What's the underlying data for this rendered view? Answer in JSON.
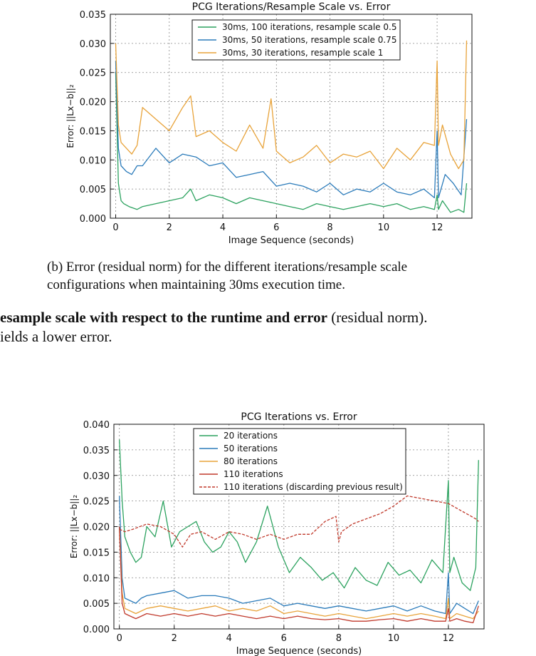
{
  "top_chart": {
    "title": "PCG Iterations/Resample Scale vs. Error",
    "ylabel": "Error: ||Lx−b||₂",
    "xlabel": "Image Sequence (seconds)",
    "yticks": [
      "0.000",
      "0.005",
      "0.010",
      "0.015",
      "0.020",
      "0.025",
      "0.030",
      "0.035"
    ],
    "xticks": [
      "0",
      "2",
      "4",
      "6",
      "8",
      "10",
      "12"
    ],
    "legend": [
      "30ms, 100 iterations, resample scale 0.5",
      "30ms, 50 iterations, resample scale 0.75",
      "30ms, 30 iterations, resample scale 1"
    ]
  },
  "caption": {
    "line1": "(b) Error (residual norm) for the different iterations/resample scale",
    "line2": "configurations when maintaining 30ms execution time."
  },
  "body_text": {
    "line1_bold": "esample scale with respect to the runtime and error",
    "line1_rest": " (residual norm).",
    "line2": "ields a lower error."
  },
  "bottom_chart": {
    "title": "PCG Iterations vs. Error",
    "ylabel": "Error: ||Lx−b||₂",
    "xlabel": "Image Sequence (seconds)",
    "yticks": [
      "0.000",
      "0.005",
      "0.010",
      "0.015",
      "0.020",
      "0.025",
      "0.030",
      "0.035",
      "0.040"
    ],
    "xticks": [
      "0",
      "2",
      "4",
      "6",
      "8",
      "10",
      "12"
    ],
    "legend": [
      "20 iterations",
      "50 iterations",
      "80 iterations",
      "110 iterations",
      "110 iterations (discarding previous result)"
    ]
  },
  "chart_data": [
    {
      "type": "line",
      "title": "PCG Iterations/Resample Scale vs. Error",
      "xlabel": "Image Sequence (seconds)",
      "ylabel": "Error: ||Lx−b||₂",
      "xlim": [
        -0.2,
        13.3
      ],
      "ylim": [
        0,
        0.035
      ],
      "grid": true,
      "legend_position": "top",
      "series": [
        {
          "name": "30ms, 100 iterations, resample scale 0.5",
          "color": "#2ca25f",
          "x": [
            0,
            0.1,
            0.2,
            0.3,
            0.5,
            0.8,
            1.0,
            1.5,
            2.0,
            2.5,
            2.8,
            3.0,
            3.5,
            4.0,
            4.5,
            5.0,
            5.5,
            6.0,
            6.5,
            7.0,
            7.5,
            8.0,
            8.5,
            9.0,
            9.5,
            10.0,
            10.5,
            11.0,
            11.5,
            11.9,
            12.0,
            12.05,
            12.2,
            12.5,
            12.8,
            13.0,
            13.1
          ],
          "values": [
            0.025,
            0.006,
            0.003,
            0.0025,
            0.002,
            0.0015,
            0.002,
            0.0025,
            0.003,
            0.0035,
            0.005,
            0.003,
            0.004,
            0.0035,
            0.0025,
            0.0035,
            0.003,
            0.0025,
            0.002,
            0.0015,
            0.0025,
            0.002,
            0.0015,
            0.002,
            0.0025,
            0.002,
            0.0025,
            0.0015,
            0.002,
            0.0015,
            0.004,
            0.0015,
            0.003,
            0.001,
            0.0015,
            0.001,
            0.006
          ]
        },
        {
          "name": "30ms, 50 iterations, resample scale 0.75",
          "color": "#2b7bba",
          "x": [
            0,
            0.1,
            0.2,
            0.4,
            0.6,
            0.8,
            1.0,
            1.5,
            2.0,
            2.5,
            3.0,
            3.5,
            4.0,
            4.5,
            5.0,
            5.5,
            6.0,
            6.5,
            7.0,
            7.5,
            8.0,
            8.5,
            9.0,
            9.5,
            10.0,
            10.5,
            11.0,
            11.5,
            11.9,
            12.0,
            12.05,
            12.3,
            12.6,
            12.9,
            13.1
          ],
          "values": [
            0.027,
            0.012,
            0.009,
            0.008,
            0.0075,
            0.009,
            0.009,
            0.012,
            0.0095,
            0.011,
            0.0105,
            0.009,
            0.0095,
            0.007,
            0.0075,
            0.008,
            0.0055,
            0.006,
            0.0055,
            0.0045,
            0.006,
            0.004,
            0.005,
            0.0045,
            0.006,
            0.0045,
            0.004,
            0.005,
            0.0035,
            0.015,
            0.0035,
            0.0075,
            0.006,
            0.004,
            0.017
          ]
        },
        {
          "name": "30ms, 30 iterations, resample scale 1",
          "color": "#e8a33a",
          "x": [
            0,
            0.1,
            0.2,
            0.4,
            0.6,
            0.8,
            1.0,
            1.5,
            2.0,
            2.5,
            2.8,
            3.0,
            3.5,
            4.0,
            4.5,
            5.0,
            5.5,
            5.8,
            6.0,
            6.5,
            7.0,
            7.5,
            8.0,
            8.5,
            9.0,
            9.5,
            10.0,
            10.5,
            11.0,
            11.5,
            11.9,
            12.0,
            12.05,
            12.2,
            12.5,
            12.8,
            13.0,
            13.1
          ],
          "values": [
            0.03,
            0.016,
            0.013,
            0.012,
            0.011,
            0.0125,
            0.019,
            0.017,
            0.015,
            0.019,
            0.021,
            0.014,
            0.015,
            0.013,
            0.0115,
            0.016,
            0.012,
            0.0205,
            0.0115,
            0.0095,
            0.0105,
            0.0125,
            0.0095,
            0.011,
            0.0105,
            0.0115,
            0.0085,
            0.012,
            0.01,
            0.013,
            0.0125,
            0.027,
            0.0125,
            0.016,
            0.011,
            0.0085,
            0.01,
            0.0305
          ]
        }
      ]
    },
    {
      "type": "line",
      "title": "PCG Iterations vs. Error",
      "xlabel": "Image Sequence (seconds)",
      "ylabel": "Error: ||Lx−b||₂",
      "xlim": [
        -0.2,
        13.3
      ],
      "ylim": [
        0,
        0.04
      ],
      "grid": true,
      "legend_position": "top",
      "series": [
        {
          "name": "20 iterations",
          "color": "#2ca25f",
          "x": [
            0,
            0.1,
            0.2,
            0.4,
            0.6,
            0.8,
            1.0,
            1.3,
            1.6,
            1.9,
            2.2,
            2.5,
            2.8,
            3.1,
            3.4,
            3.7,
            4.0,
            4.3,
            4.6,
            5.0,
            5.4,
            5.8,
            6.2,
            6.6,
            7.0,
            7.4,
            7.8,
            8.2,
            8.6,
            9.0,
            9.4,
            9.8,
            10.2,
            10.6,
            11.0,
            11.4,
            11.8,
            12.0,
            12.05,
            12.2,
            12.5,
            12.8,
            13.0,
            13.1
          ],
          "values": [
            0.037,
            0.025,
            0.018,
            0.015,
            0.013,
            0.014,
            0.02,
            0.018,
            0.025,
            0.016,
            0.019,
            0.02,
            0.021,
            0.017,
            0.015,
            0.016,
            0.019,
            0.017,
            0.013,
            0.017,
            0.024,
            0.016,
            0.011,
            0.014,
            0.012,
            0.0095,
            0.011,
            0.008,
            0.012,
            0.0095,
            0.0085,
            0.013,
            0.0105,
            0.0115,
            0.009,
            0.0135,
            0.011,
            0.029,
            0.011,
            0.014,
            0.009,
            0.0075,
            0.012,
            0.033
          ]
        },
        {
          "name": "50 iterations",
          "color": "#2b7bba",
          "x": [
            0,
            0.1,
            0.2,
            0.4,
            0.6,
            0.8,
            1.0,
            1.5,
            2.0,
            2.5,
            3.0,
            3.5,
            4.0,
            4.5,
            5.0,
            5.5,
            6.0,
            6.5,
            7.0,
            7.5,
            8.0,
            8.5,
            9.0,
            9.5,
            10.0,
            10.5,
            11.0,
            11.5,
            11.9,
            12.0,
            12.05,
            12.3,
            12.6,
            12.9,
            13.1
          ],
          "values": [
            0.026,
            0.01,
            0.006,
            0.0055,
            0.005,
            0.006,
            0.0065,
            0.007,
            0.0075,
            0.006,
            0.0065,
            0.0065,
            0.006,
            0.005,
            0.0055,
            0.006,
            0.0045,
            0.005,
            0.0045,
            0.004,
            0.0045,
            0.004,
            0.0035,
            0.004,
            0.0045,
            0.0035,
            0.0045,
            0.0035,
            0.003,
            0.011,
            0.003,
            0.005,
            0.004,
            0.003,
            0.0055
          ]
        },
        {
          "name": "80 iterations",
          "color": "#e8a33a",
          "x": [
            0,
            0.1,
            0.2,
            0.4,
            0.6,
            0.8,
            1.0,
            1.5,
            2.0,
            2.5,
            3.0,
            3.5,
            4.0,
            4.5,
            5.0,
            5.5,
            6.0,
            6.5,
            7.0,
            7.5,
            8.0,
            8.5,
            9.0,
            9.5,
            10.0,
            10.5,
            11.0,
            11.5,
            11.9,
            12.0,
            12.05,
            12.3,
            12.6,
            12.9,
            13.1
          ],
          "values": [
            0.02,
            0.007,
            0.004,
            0.0035,
            0.003,
            0.0035,
            0.004,
            0.0045,
            0.004,
            0.0035,
            0.004,
            0.0045,
            0.0035,
            0.004,
            0.0035,
            0.0045,
            0.003,
            0.0035,
            0.003,
            0.0025,
            0.003,
            0.0025,
            0.002,
            0.0025,
            0.003,
            0.0025,
            0.003,
            0.0025,
            0.002,
            0.006,
            0.002,
            0.003,
            0.0025,
            0.002,
            0.0035
          ]
        },
        {
          "name": "110 iterations",
          "color": "#c0392b",
          "x": [
            0,
            0.1,
            0.2,
            0.4,
            0.6,
            0.8,
            1.0,
            1.5,
            2.0,
            2.5,
            3.0,
            3.5,
            4.0,
            4.5,
            5.0,
            5.5,
            6.0,
            6.5,
            7.0,
            7.5,
            8.0,
            8.5,
            9.0,
            9.5,
            10.0,
            10.5,
            11.0,
            11.5,
            11.9,
            12.0,
            12.05,
            12.3,
            12.6,
            12.9,
            13.1
          ],
          "values": [
            0.02,
            0.005,
            0.003,
            0.0025,
            0.002,
            0.0025,
            0.003,
            0.0025,
            0.003,
            0.0025,
            0.003,
            0.0025,
            0.003,
            0.0025,
            0.002,
            0.0025,
            0.002,
            0.0025,
            0.002,
            0.0018,
            0.002,
            0.0015,
            0.0015,
            0.0018,
            0.002,
            0.0015,
            0.002,
            0.0015,
            0.0015,
            0.004,
            0.0015,
            0.002,
            0.0015,
            0.0012,
            0.0045
          ]
        },
        {
          "name": "110 iterations (discarding previous result)",
          "color": "#c0392b",
          "dashed": true,
          "x": [
            0,
            0.2,
            0.5,
            1.0,
            1.5,
            2.0,
            2.3,
            2.6,
            3.0,
            3.5,
            4.0,
            4.5,
            5.0,
            5.5,
            6.0,
            6.5,
            7.0,
            7.5,
            7.9,
            8.0,
            8.1,
            8.5,
            9.0,
            9.5,
            10.0,
            10.5,
            11.0,
            11.5,
            12.0,
            12.5,
            13.0,
            13.1
          ],
          "values": [
            0.0195,
            0.019,
            0.0195,
            0.0205,
            0.02,
            0.0185,
            0.016,
            0.0185,
            0.019,
            0.0175,
            0.019,
            0.0185,
            0.0175,
            0.0185,
            0.0175,
            0.0185,
            0.0185,
            0.021,
            0.022,
            0.017,
            0.019,
            0.0205,
            0.0215,
            0.0225,
            0.024,
            0.026,
            0.0255,
            0.025,
            0.0245,
            0.023,
            0.0215,
            0.021
          ]
        }
      ]
    }
  ]
}
